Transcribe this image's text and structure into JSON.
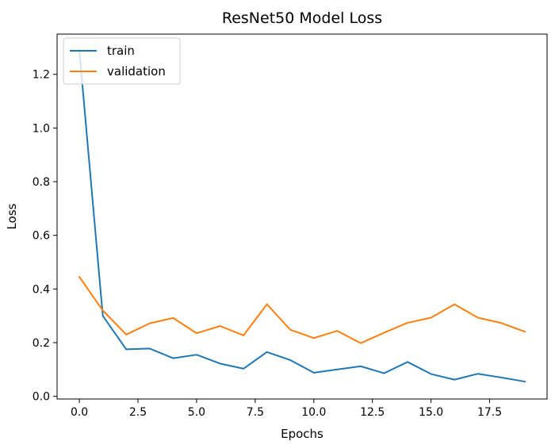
{
  "chart_data": {
    "type": "line",
    "title": "ResNet50 Model Loss",
    "xlabel": "Epochs",
    "ylabel": "Loss",
    "xlim": [
      -0.95,
      19.95
    ],
    "ylim": [
      -0.01,
      1.35
    ],
    "xticks": [
      0.0,
      2.5,
      5.0,
      7.5,
      10.0,
      12.5,
      15.0,
      17.5
    ],
    "xtick_labels": [
      "0.0",
      "2.5",
      "5.0",
      "7.5",
      "10.0",
      "12.5",
      "15.0",
      "17.5"
    ],
    "yticks": [
      0.0,
      0.2,
      0.4,
      0.6,
      0.8,
      1.0,
      1.2
    ],
    "ytick_labels": [
      "0.0",
      "0.2",
      "0.4",
      "0.6",
      "0.8",
      "1.0",
      "1.2"
    ],
    "grid": false,
    "legend": "upper-left",
    "x": [
      0,
      1,
      2,
      3,
      4,
      5,
      6,
      7,
      8,
      9,
      10,
      11,
      12,
      13,
      14,
      15,
      16,
      17,
      18,
      19
    ],
    "series": [
      {
        "name": "train",
        "color": "#1f77b4",
        "values": [
          1.29,
          0.3,
          0.175,
          0.178,
          0.142,
          0.155,
          0.122,
          0.103,
          0.165,
          0.135,
          0.088,
          0.1,
          0.112,
          0.086,
          0.128,
          0.083,
          0.062,
          0.084,
          0.07,
          0.055
        ]
      },
      {
        "name": "validation",
        "color": "#ff7f0e",
        "values": [
          0.445,
          0.32,
          0.23,
          0.272,
          0.292,
          0.235,
          0.262,
          0.227,
          0.343,
          0.248,
          0.217,
          0.244,
          0.198,
          0.237,
          0.274,
          0.293,
          0.343,
          0.293,
          0.273,
          0.241
        ]
      }
    ]
  }
}
